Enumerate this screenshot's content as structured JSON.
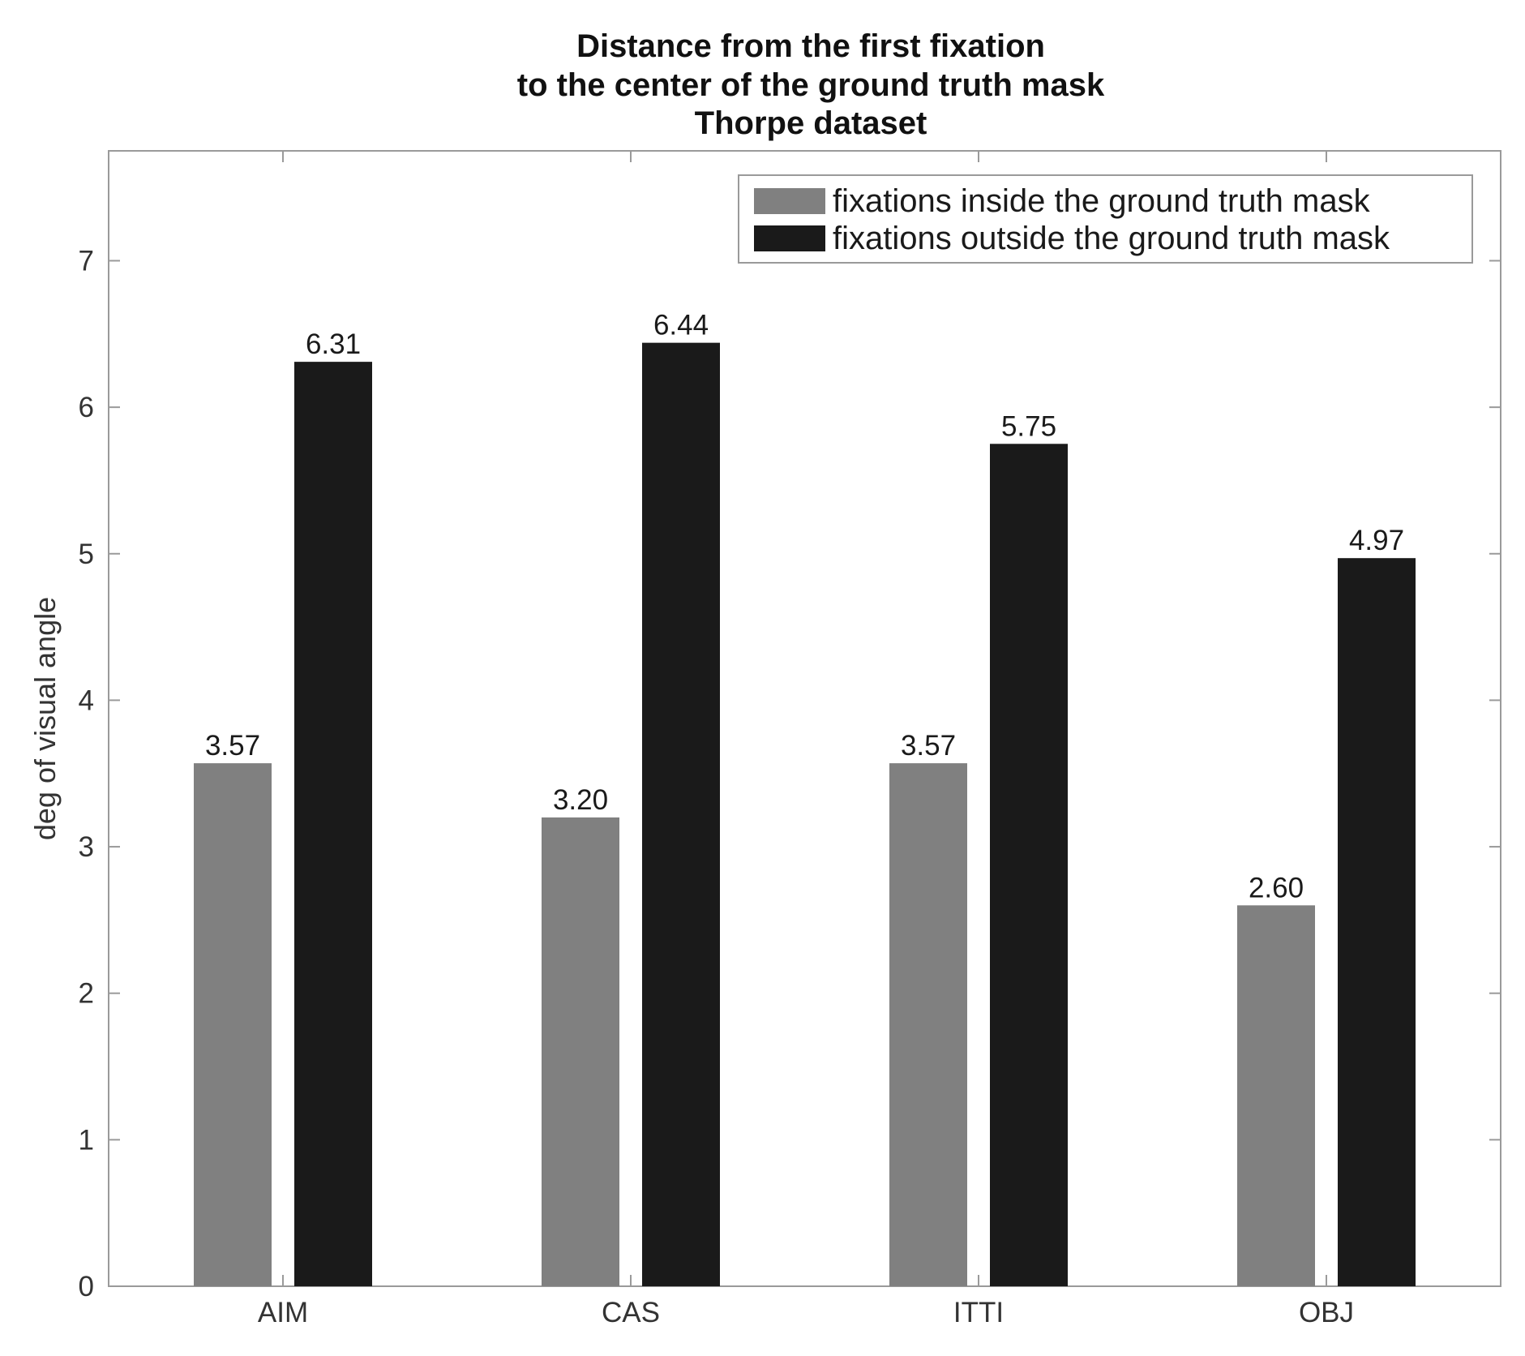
{
  "chart_data": {
    "type": "bar",
    "title": [
      "Distance from the first fixation",
      "to the center of the ground truth mask",
      "Thorpe dataset"
    ],
    "xlabel": "",
    "ylabel": "deg of visual angle",
    "categories": [
      "AIM",
      "CAS",
      "ITTI",
      "OBJ"
    ],
    "ylim": [
      0,
      7.75
    ],
    "yticks": [
      0,
      1,
      2,
      3,
      4,
      5,
      6,
      7
    ],
    "grid": false,
    "legend_position": "top-right",
    "series": [
      {
        "name": "fixations inside the ground truth mask",
        "color": "#808080",
        "values": [
          3.57,
          3.2,
          3.57,
          2.6
        ],
        "labels": [
          "3.57",
          "3.20",
          "3.57",
          "2.60"
        ]
      },
      {
        "name": "fixations outside the ground truth mask",
        "color": "#1a1a1a",
        "values": [
          6.31,
          6.44,
          5.75,
          4.97
        ],
        "labels": [
          "6.31",
          "6.44",
          "5.75",
          "4.97"
        ]
      }
    ]
  }
}
